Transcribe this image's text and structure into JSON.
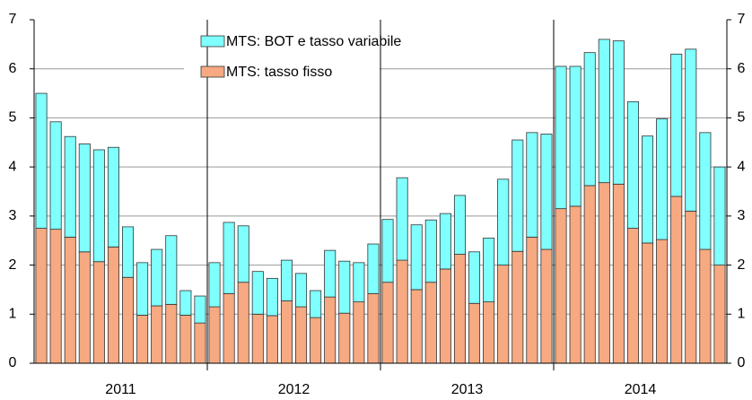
{
  "chart_data": {
    "type": "stacked-bar",
    "categories": [
      null,
      null,
      null,
      null,
      null,
      null,
      null,
      null,
      null,
      null,
      null,
      null,
      null,
      null,
      null,
      null,
      null,
      null,
      null,
      null,
      null,
      null,
      null,
      null,
      null,
      null,
      null,
      null,
      null,
      null,
      null,
      null,
      null,
      null,
      null,
      null,
      null,
      null,
      null,
      null,
      null,
      null,
      null,
      null,
      null,
      null,
      null,
      null
    ],
    "groups": [
      "2011",
      "2012",
      "2013",
      "2014"
    ],
    "series": [
      {
        "name": "MTS: tasso fisso",
        "color": "#f7a981",
        "values": [
          2.75,
          2.73,
          2.57,
          2.27,
          2.07,
          2.37,
          1.75,
          0.98,
          1.17,
          1.2,
          0.98,
          0.82,
          1.15,
          1.42,
          1.65,
          1.0,
          0.97,
          1.27,
          1.15,
          0.93,
          1.35,
          1.02,
          1.25,
          1.42,
          1.65,
          2.1,
          1.5,
          1.65,
          1.92,
          2.22,
          1.22,
          1.25,
          2.0,
          2.28,
          2.57,
          2.32,
          3.15,
          3.2,
          3.62,
          3.68,
          3.65,
          2.75,
          2.45,
          2.52,
          3.4,
          3.1,
          2.32,
          2.0
        ]
      },
      {
        "name": "MTS: BOT e tasso variabile",
        "color": "#80ffff",
        "values": [
          2.75,
          2.19,
          2.05,
          2.2,
          2.28,
          2.03,
          1.03,
          1.07,
          1.15,
          1.4,
          0.5,
          0.55,
          0.9,
          1.45,
          1.15,
          0.87,
          0.76,
          0.83,
          0.68,
          0.55,
          0.95,
          1.06,
          0.8,
          1.01,
          1.28,
          1.68,
          1.32,
          1.27,
          1.13,
          1.2,
          1.05,
          1.3,
          1.75,
          2.27,
          2.13,
          2.35,
          2.9,
          2.85,
          2.71,
          2.92,
          2.92,
          2.58,
          2.18,
          2.46,
          2.9,
          3.3,
          2.38,
          2.0
        ]
      }
    ],
    "ylim": [
      0,
      7
    ],
    "yticks": [
      0,
      1,
      2,
      3,
      4,
      5,
      6,
      7
    ],
    "y2lim": [
      0,
      7
    ],
    "y2ticks": [
      0,
      1,
      2,
      3,
      4,
      5,
      6,
      7
    ],
    "grid": true
  }
}
